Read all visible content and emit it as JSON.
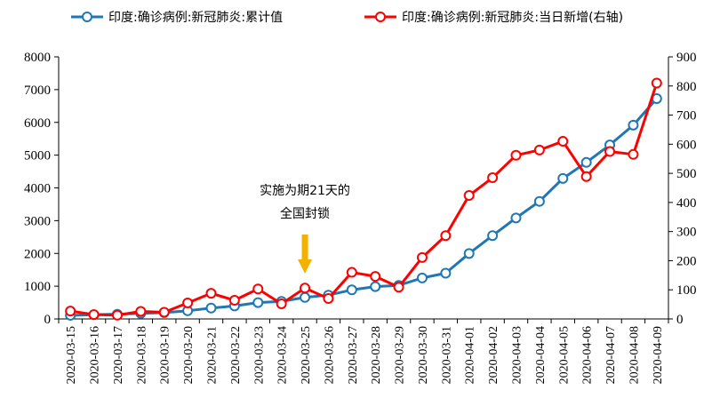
{
  "chart_data": {
    "type": "line",
    "categories": [
      "2020-03-15",
      "2020-03-16",
      "2020-03-17",
      "2020-03-18",
      "2020-03-19",
      "2020-03-20",
      "2020-03-21",
      "2020-03-22",
      "2020-03-23",
      "2020-03-24",
      "2020-03-25",
      "2020-03-26",
      "2020-03-27",
      "2020-03-28",
      "2020-03-29",
      "2020-03-30",
      "2020-03-31",
      "2020-04-01",
      "2020-04-02",
      "2020-04-03",
      "2020-04-04",
      "2020-04-05",
      "2020-04-06",
      "2020-04-07",
      "2020-04-08",
      "2020-04-09"
    ],
    "series": [
      {
        "name": "印度:确诊病例:新冠肺炎:累计值",
        "axis": "left",
        "color": "#1f77b4",
        "values": [
          110,
          129,
          143,
          169,
          194,
          249,
          332,
          396,
          499,
          536,
          657,
          727,
          887,
          987,
          1024,
          1251,
          1397,
          1998,
          2543,
          3082,
          3588,
          4289,
          4778,
          5311,
          5916,
          6725
        ]
      },
      {
        "name": "印度:确诊病例:新冠肺炎:当日新增(右轴)",
        "axis": "right",
        "color": "#ff0000",
        "values": [
          27,
          15,
          13,
          26,
          23,
          55,
          88,
          64,
          103,
          52,
          106,
          70,
          160,
          146,
          109,
          211,
          286,
          424,
          485,
          562,
          580,
          610,
          489,
          575,
          565,
          810
        ]
      }
    ],
    "y_left": {
      "min": 0,
      "max": 8000,
      "ticks": [
        "0",
        "1000",
        "2000",
        "3000",
        "4000",
        "5000",
        "6000",
        "7000",
        "8000"
      ]
    },
    "y_right": {
      "min": 0,
      "max": 900,
      "ticks": [
        "0",
        "100",
        "200",
        "300",
        "400",
        "500",
        "600",
        "700",
        "800",
        "900"
      ]
    },
    "grid": false,
    "legend_position": "top",
    "annotation": {
      "lines": [
        "实施为期21天的",
        "全国封锁"
      ],
      "at_category": "2020-03-25",
      "arrow_color": "#f5b100"
    }
  }
}
